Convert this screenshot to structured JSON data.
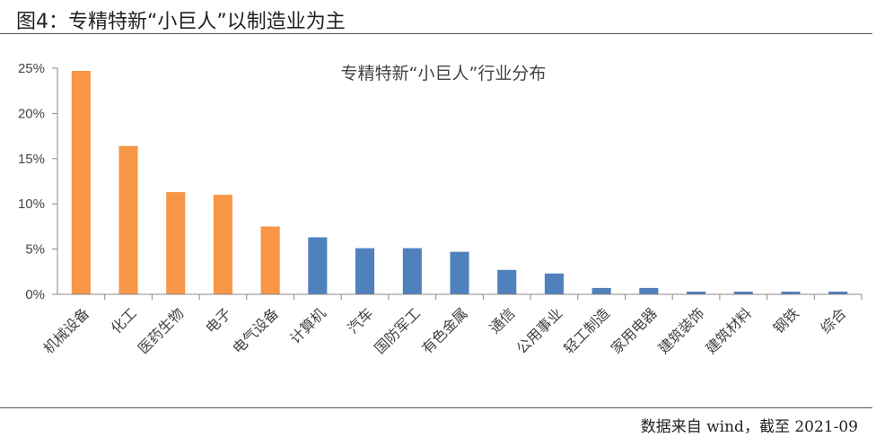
{
  "figure_title": "图4：专精特新“小巨人”以制造业为主",
  "source_note": "数据来自 wind，截至 2021-09",
  "colors": {
    "highlight": "#F79646",
    "normal": "#4F81BD",
    "axis": "#888888"
  },
  "chart_data": {
    "type": "bar",
    "title": "专精特新“小巨人”行业分布",
    "xlabel": "",
    "ylabel": "",
    "ylim": [
      0,
      0.25
    ],
    "yticks": [
      "0%",
      "5%",
      "10%",
      "15%",
      "20%",
      "25%"
    ],
    "grid": false,
    "categories": [
      "机械设备",
      "化工",
      "医药生物",
      "电子",
      "电气设备",
      "计算机",
      "汽车",
      "国防军工",
      "有色金属",
      "通信",
      "公用事业",
      "轻工制造",
      "家用电器",
      "建筑装饰",
      "建筑材料",
      "钢铁",
      "综合"
    ],
    "values": [
      0.247,
      0.164,
      0.113,
      0.11,
      0.075,
      0.063,
      0.051,
      0.051,
      0.047,
      0.027,
      0.023,
      0.007,
      0.007,
      0.003,
      0.003,
      0.003,
      0.003
    ],
    "highlight_count": 5
  }
}
